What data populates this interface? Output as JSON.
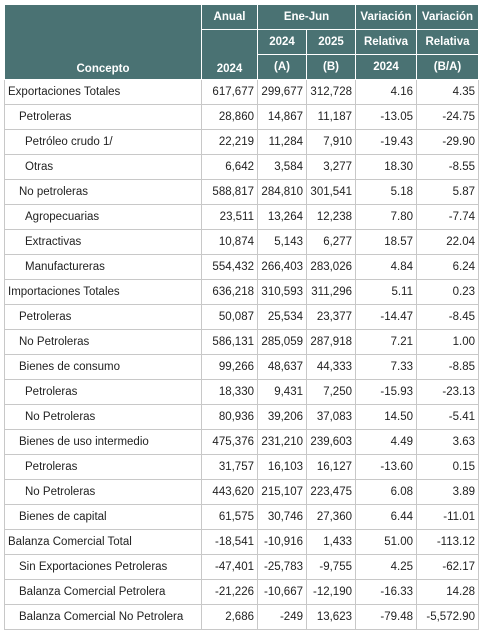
{
  "header": {
    "concepto": "Concepto",
    "anual": "Anual",
    "anual_year": "2024",
    "ene_jun": "Ene-Jun",
    "y2024": "2024",
    "y2025": "2025",
    "a": "(A)",
    "b": "(B)",
    "variacion1": "Variación",
    "relativa1": "Relativa",
    "var_year": "2024",
    "variacion2": "Variación",
    "relativa2": "Relativa",
    "ba": "(B/A)"
  },
  "rows": [
    {
      "label": "Exportaciones Totales",
      "level": 0,
      "anual": "617,677",
      "a": "299,677",
      "b": "312,728",
      "var2024": "4.16",
      "varba": "4.35"
    },
    {
      "label": "Petroleras",
      "level": 1,
      "anual": "28,860",
      "a": "14,867",
      "b": "11,187",
      "var2024": "-13.05",
      "varba": "-24.75"
    },
    {
      "label": "Petróleo crudo 1/",
      "level": 2,
      "anual": "22,219",
      "a": "11,284",
      "b": "7,910",
      "var2024": "-19.43",
      "varba": "-29.90"
    },
    {
      "label": "Otras",
      "level": 2,
      "anual": "6,642",
      "a": "3,584",
      "b": "3,277",
      "var2024": "18.30",
      "varba": "-8.55"
    },
    {
      "label": "No petroleras",
      "level": 1,
      "anual": "588,817",
      "a": "284,810",
      "b": "301,541",
      "var2024": "5.18",
      "varba": "5.87"
    },
    {
      "label": "Agropecuarias",
      "level": 2,
      "anual": "23,511",
      "a": "13,264",
      "b": "12,238",
      "var2024": "7.80",
      "varba": "-7.74"
    },
    {
      "label": "Extractivas",
      "level": 2,
      "anual": "10,874",
      "a": "5,143",
      "b": "6,277",
      "var2024": "18.57",
      "varba": "22.04"
    },
    {
      "label": "Manufactureras",
      "level": 2,
      "anual": "554,432",
      "a": "266,403",
      "b": "283,026",
      "var2024": "4.84",
      "varba": "6.24"
    },
    {
      "label": "Importaciones Totales",
      "level": 0,
      "anual": "636,218",
      "a": "310,593",
      "b": "311,296",
      "var2024": "5.11",
      "varba": "0.23"
    },
    {
      "label": "Petroleras",
      "level": 1,
      "anual": "50,087",
      "a": "25,534",
      "b": "23,377",
      "var2024": "-14.47",
      "varba": "-8.45"
    },
    {
      "label": "No Petroleras",
      "level": 1,
      "anual": "586,131",
      "a": "285,059",
      "b": "287,918",
      "var2024": "7.21",
      "varba": "1.00"
    },
    {
      "label": "Bienes de consumo",
      "level": 1,
      "anual": "99,266",
      "a": "48,637",
      "b": "44,333",
      "var2024": "7.33",
      "varba": "-8.85"
    },
    {
      "label": "Petroleras",
      "level": 2,
      "anual": "18,330",
      "a": "9,431",
      "b": "7,250",
      "var2024": "-15.93",
      "varba": "-23.13"
    },
    {
      "label": "No Petroleras",
      "level": 2,
      "anual": "80,936",
      "a": "39,206",
      "b": "37,083",
      "var2024": "14.50",
      "varba": "-5.41"
    },
    {
      "label": "Bienes de uso intermedio",
      "level": 1,
      "anual": "475,376",
      "a": "231,210",
      "b": "239,603",
      "var2024": "4.49",
      "varba": "3.63"
    },
    {
      "label": "Petroleras",
      "level": 2,
      "anual": "31,757",
      "a": "16,103",
      "b": "16,127",
      "var2024": "-13.60",
      "varba": "0.15"
    },
    {
      "label": "No Petroleras",
      "level": 2,
      "anual": "443,620",
      "a": "215,107",
      "b": "223,475",
      "var2024": "6.08",
      "varba": "3.89"
    },
    {
      "label": "Bienes de capital",
      "level": 1,
      "anual": "61,575",
      "a": "30,746",
      "b": "27,360",
      "var2024": "6.44",
      "varba": "-11.01"
    },
    {
      "label": "Balanza Comercial Total",
      "level": 0,
      "anual": "-18,541",
      "a": "-10,916",
      "b": "1,433",
      "var2024": "51.00",
      "varba": "-113.12"
    },
    {
      "label": "Sin Exportaciones Petroleras",
      "level": 1,
      "anual": "-47,401",
      "a": "-25,783",
      "b": "-9,755",
      "var2024": "4.25",
      "varba": "-62.17"
    },
    {
      "label": "Balanza Comercial Petrolera",
      "level": 1,
      "anual": "-21,226",
      "a": "-10,667",
      "b": "-12,190",
      "var2024": "-16.33",
      "varba": "14.28"
    },
    {
      "label": "Balanza Comercial No Petrolera",
      "level": 1,
      "anual": "2,686",
      "a": "-249",
      "b": "13,623",
      "var2024": "-79.48",
      "varba": "-5,572.90"
    }
  ]
}
